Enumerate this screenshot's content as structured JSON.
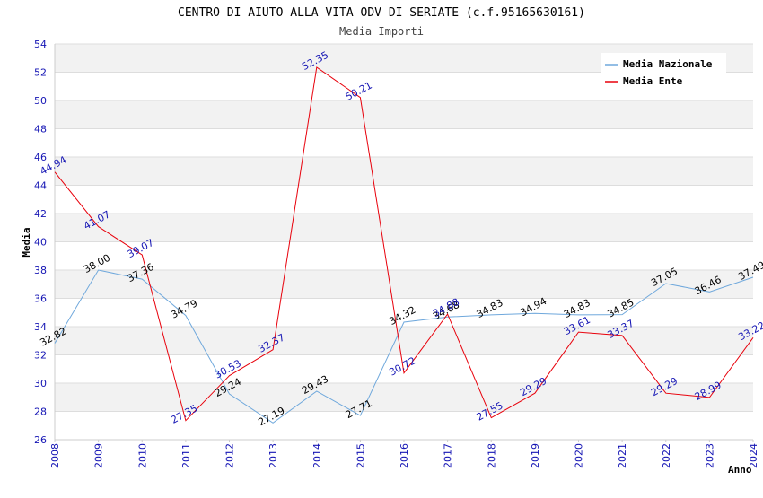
{
  "chart_data": {
    "type": "line",
    "title": "CENTRO DI AIUTO ALLA VITA ODV DI SERIATE (c.f.95165630161)",
    "subtitle": "Media Importi",
    "xlabel": "Anno",
    "ylabel": "Media",
    "ylim": [
      26,
      54
    ],
    "ystep": 2,
    "grid": true,
    "legend_position": "top-right",
    "x": [
      "2008",
      "2009",
      "2010",
      "2011",
      "2012",
      "2013",
      "2014",
      "2015",
      "2016",
      "2017",
      "2018",
      "2019",
      "2020",
      "2021",
      "2022",
      "2023",
      "2024"
    ],
    "series": [
      {
        "name": "Media Nazionale",
        "color": "#6fa8dc",
        "values": [
          32.82,
          38.0,
          37.36,
          34.79,
          29.24,
          27.19,
          29.43,
          27.71,
          34.32,
          34.68,
          34.83,
          34.94,
          34.83,
          34.85,
          37.05,
          36.46,
          37.49
        ],
        "labels": [
          "32.82",
          "38.00",
          "37.36",
          "34.79",
          "29.24",
          "27.19",
          "29.43",
          "27.71",
          "34.32",
          "34.68",
          "34.83",
          "34.94",
          "34.83",
          "34.85",
          "37.05",
          "36.46",
          "37.49"
        ]
      },
      {
        "name": "Media Ente",
        "color": "#e8000b",
        "values": [
          44.94,
          41.07,
          39.07,
          27.35,
          30.53,
          32.37,
          52.35,
          50.21,
          30.72,
          34.88,
          27.55,
          29.29,
          33.61,
          33.37,
          29.29,
          28.99,
          33.22
        ],
        "labels": [
          "44.94",
          "41.07",
          "39.07",
          "27.35",
          "30.53",
          "32.37",
          "52.35",
          "50.21",
          "30.72",
          "34.88",
          "27.55",
          "29.29",
          "33.61",
          "33.37",
          "29.29",
          "28.99",
          "33.22"
        ]
      }
    ]
  }
}
